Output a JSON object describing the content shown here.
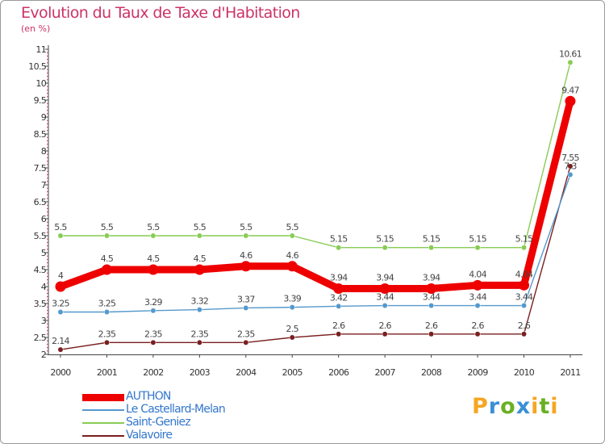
{
  "chart_data": {
    "type": "line",
    "title": "Evolution du Taux de Taxe d'Habitation",
    "subtitle": "(en %)",
    "xlabel": "",
    "ylabel": "",
    "categories": [
      "2000",
      "2001",
      "2002",
      "2003",
      "2004",
      "2005",
      "2006",
      "2007",
      "2008",
      "2009",
      "2010",
      "2011"
    ],
    "ylim": [
      2,
      11
    ],
    "yticks": [
      2,
      2.5,
      3,
      3.5,
      4,
      4.5,
      5,
      5.5,
      6,
      6.5,
      7,
      7.5,
      8,
      8.5,
      9,
      9.5,
      10,
      10.5,
      11
    ],
    "ytick_labels": [
      "2",
      "2.5",
      "3",
      "3.5",
      "4",
      "4.5",
      "5",
      "5.5",
      "6",
      "6.5",
      "7",
      "7.5",
      "8",
      "8.5",
      "9",
      "9.5",
      "10",
      "10.5",
      "11"
    ],
    "grid": false,
    "legend_position": "bottom-left",
    "series": [
      {
        "name": "Valavoire",
        "color": "#7a1f1f",
        "values": [
          2.14,
          2.35,
          2.35,
          2.35,
          2.35,
          2.5,
          2.6,
          2.6,
          2.6,
          2.6,
          2.6,
          7.55
        ],
        "labels": [
          "2.14",
          "2.35",
          "2.35",
          "2.35",
          "2.35",
          "2.5",
          "2.6",
          "2.6",
          "2.6",
          "2.6",
          "2.6",
          "7.55"
        ]
      },
      {
        "name": "Le Castellard-Melan",
        "color": "#5599cc",
        "values": [
          3.25,
          3.25,
          3.29,
          3.32,
          3.37,
          3.39,
          3.42,
          3.44,
          3.44,
          3.44,
          3.44,
          7.3
        ],
        "labels": [
          "3.25",
          "3.25",
          "3.29",
          "3.32",
          "3.37",
          "3.39",
          "3.42",
          "3.44",
          "3.44",
          "3.44",
          "3.44",
          "7.3"
        ]
      },
      {
        "name": "Saint-Geniez",
        "color": "#88cc55",
        "values": [
          5.5,
          5.5,
          5.5,
          5.5,
          5.5,
          5.5,
          5.15,
          5.15,
          5.15,
          5.15,
          5.15,
          10.61
        ],
        "labels": [
          "5.5",
          "5.5",
          "5.5",
          "5.5",
          "5.5",
          "5.5",
          "5.15",
          "5.15",
          "5.15",
          "5.15",
          "5.15",
          "10.61"
        ]
      },
      {
        "name": "AUTHON",
        "color": "#ee0000",
        "values": [
          4,
          4.5,
          4.5,
          4.5,
          4.6,
          4.6,
          3.94,
          3.94,
          3.94,
          4.04,
          4.04,
          9.47
        ],
        "labels": [
          "4",
          "4.5",
          "4.5",
          "4.5",
          "4.6",
          "4.6",
          "3.94",
          "3.94",
          "3.94",
          "4.04",
          "4.04",
          "9.47"
        ]
      }
    ],
    "legend": [
      {
        "name": "AUTHON",
        "color": "#ee0000",
        "text_color": "#3377cc"
      },
      {
        "name": "Le Castellard-Melan",
        "color": "#5599cc",
        "text_color": "#3377cc"
      },
      {
        "name": "Saint-Geniez",
        "color": "#88cc55",
        "text_color": "#3377cc"
      },
      {
        "name": "Valavoire",
        "color": "#7a1f1f",
        "text_color": "#3377cc"
      }
    ]
  },
  "brand": {
    "letters": [
      "P",
      "r",
      "o",
      "x",
      "i",
      "t",
      "i"
    ],
    "colors": [
      "#f5a623",
      "#3a8fd6",
      "#6ab023",
      "#3a8fd6",
      "#f5a623",
      "#6ab023",
      "#f5a623"
    ]
  }
}
